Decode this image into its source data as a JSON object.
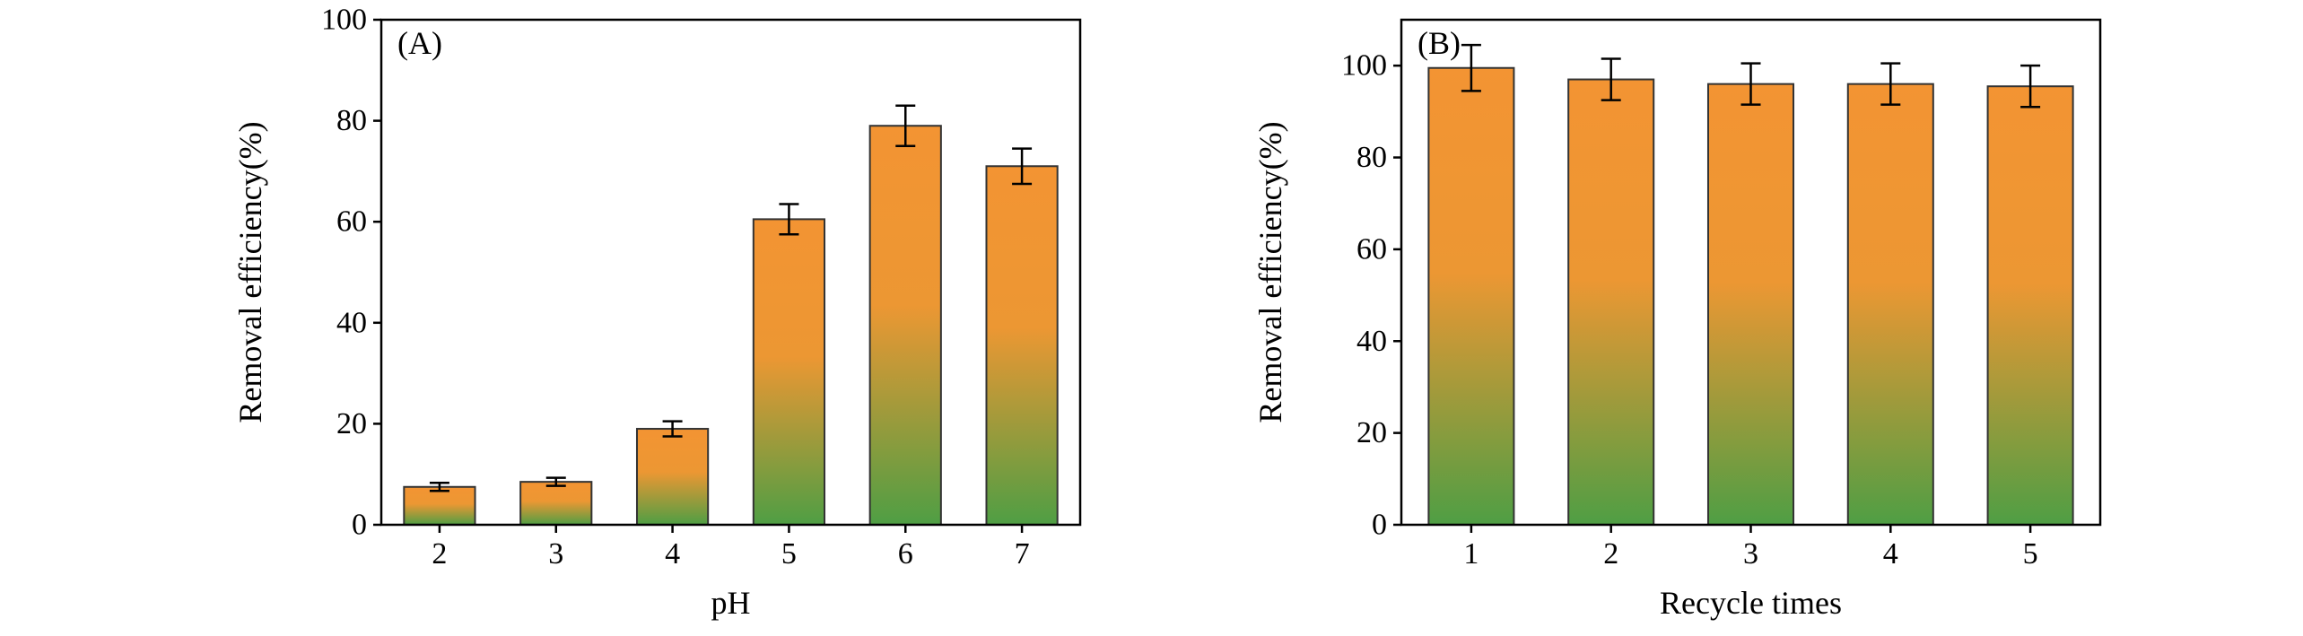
{
  "figure": {
    "background_color": "#ffffff",
    "text_color": "#000000",
    "axis_line_color": "#000000"
  },
  "chart_data": [
    {
      "type": "bar",
      "panel_label": "(A)",
      "title": "",
      "xlabel": "pH",
      "ylabel": "Removal efficiency(%)",
      "categories": [
        "2",
        "3",
        "4",
        "5",
        "6",
        "7"
      ],
      "values": [
        7.5,
        8.5,
        19,
        60.5,
        79,
        71
      ],
      "errors": [
        0.8,
        0.8,
        1.5,
        3,
        4,
        3.5
      ],
      "ylim": [
        0,
        100
      ],
      "yticks": [
        0,
        20,
        40,
        60,
        80,
        100
      ],
      "grid": false,
      "legend": false,
      "bar_colors": {
        "top": "#F39433",
        "mid": "#EC9733",
        "bottom": "#4F9E44"
      },
      "bar_outline_color": "#333333",
      "error_bar_color": "#000000"
    },
    {
      "type": "bar",
      "panel_label": "(B)",
      "title": "",
      "xlabel": "Recycle times",
      "ylabel": "Removal efficiency(%)",
      "categories": [
        "1",
        "2",
        "3",
        "4",
        "5"
      ],
      "values": [
        99.5,
        97,
        96,
        96,
        95.5
      ],
      "errors": [
        5,
        4.5,
        4.5,
        4.5,
        4.5
      ],
      "ylim": [
        0,
        110
      ],
      "yticks": [
        0,
        20,
        40,
        60,
        80,
        100
      ],
      "grid": false,
      "legend": false,
      "bar_colors": {
        "top": "#F39433",
        "mid": "#EC9733",
        "bottom": "#4F9E44"
      },
      "bar_outline_color": "#333333",
      "error_bar_color": "#000000"
    }
  ]
}
